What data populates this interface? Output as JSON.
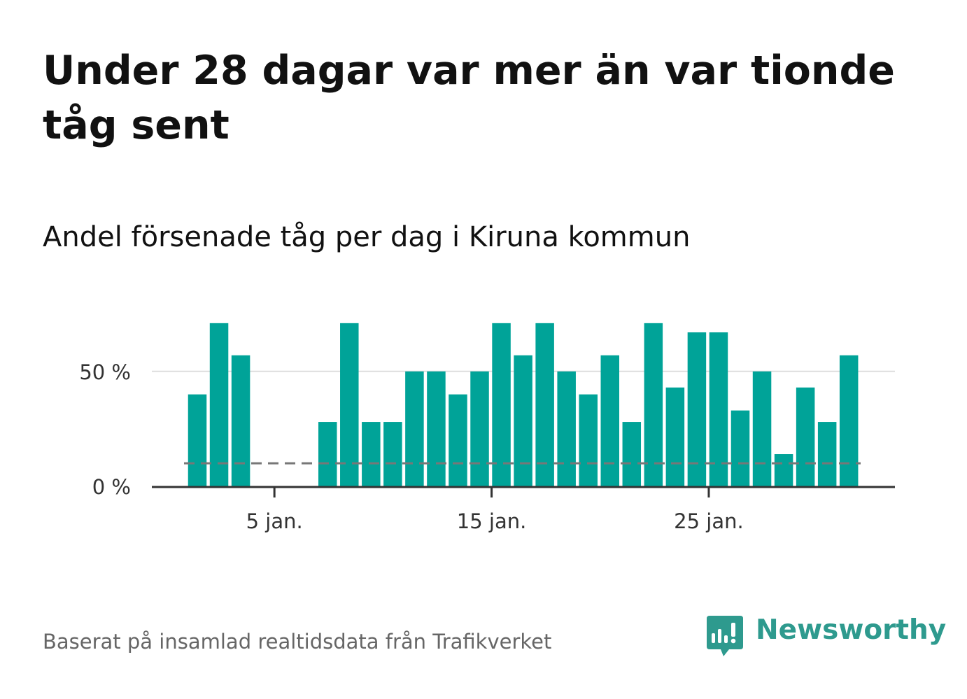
{
  "title": "Under 28 dagar var mer än var tionde tåg sent",
  "subtitle": "Andel försenade tåg per dag i Kiruna kommun",
  "source": "Baserat på insamlad realtidsdata från Trafikverket",
  "brand": {
    "name": "Newsworthy",
    "color": "#2e9a8e"
  },
  "colors": {
    "bar": "#00a398",
    "reference_line": "#777777",
    "grid": "#dddddd",
    "axis": "#333333"
  },
  "chart_data": {
    "type": "bar",
    "x": [
      1,
      2,
      3,
      4,
      5,
      6,
      7,
      8,
      9,
      10,
      11,
      12,
      13,
      14,
      15,
      16,
      17,
      18,
      19,
      20,
      21,
      22,
      23,
      24,
      25,
      26,
      27,
      28,
      29,
      30,
      31
    ],
    "values": [
      40,
      71,
      57,
      0,
      0,
      0,
      28,
      71,
      28,
      28,
      50,
      50,
      40,
      50,
      71,
      57,
      71,
      50,
      40,
      57,
      28,
      71,
      43,
      67,
      67,
      33,
      50,
      14,
      43,
      28,
      57
    ],
    "ylim": [
      0,
      74
    ],
    "y_ticks": [
      {
        "value": 0,
        "label": "0 %"
      },
      {
        "value": 50,
        "label": "50 %"
      }
    ],
    "x_ticks": [
      {
        "value": 5,
        "label": "5 jan."
      },
      {
        "value": 15,
        "label": "15 jan."
      },
      {
        "value": 25,
        "label": "25 jan."
      }
    ],
    "reference_line": {
      "value": 10,
      "style": "dashed"
    },
    "grid": true
  }
}
